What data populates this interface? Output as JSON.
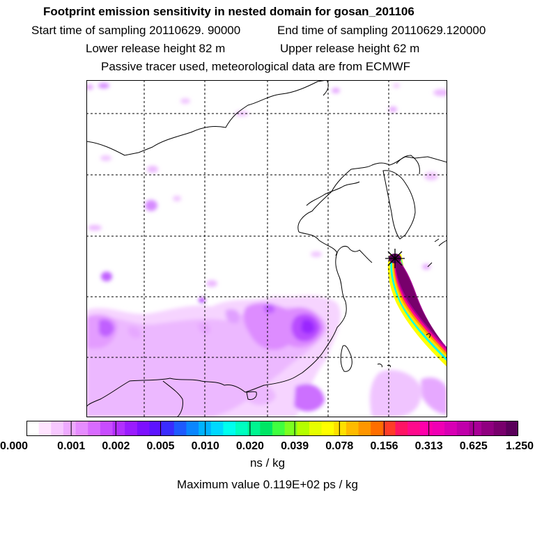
{
  "header": {
    "title": "Footprint emission sensitivity in nested domain for gosan_201106",
    "start_time": "Start time of sampling 20110629. 90000",
    "end_time": "End time of sampling 20110629.120000",
    "lower_height": "Lower release height   82 m",
    "upper_height": "Upper release height   62 m",
    "tracer_info": "Passive tracer used, meteorological data are from ECMWF"
  },
  "colorbar": {
    "colors": [
      "#ffffff",
      "#ffe4ff",
      "#f7c8ff",
      "#eeaaff",
      "#e68cff",
      "#d86bff",
      "#c84cff",
      "#b230ff",
      "#9a1cff",
      "#7d10ff",
      "#5c14ff",
      "#3a2cff",
      "#1e5aff",
      "#0a86ff",
      "#00b2ff",
      "#00d8ff",
      "#00ffee",
      "#00ffc0",
      "#00f590",
      "#00e664",
      "#40ff40",
      "#7cff20",
      "#b4ff00",
      "#e6ff00",
      "#ffff00",
      "#ffe000",
      "#ffbb00",
      "#ff9600",
      "#ff6e00",
      "#ff3c28",
      "#ff1464",
      "#ff0a8c",
      "#ff00aa",
      "#f000b4",
      "#d800b4",
      "#c000aa",
      "#a80096",
      "#900080",
      "#78006c",
      "#5a005a"
    ],
    "tick_labels": [
      "0.000",
      "0.001",
      "0.002",
      "0.005",
      "0.010",
      "0.020",
      "0.039",
      "0.078",
      "0.156",
      "0.313",
      "0.625",
      "1.250"
    ],
    "units": "ns / kg",
    "max_value": "Maximum value  0.119E+02 ps / kg"
  }
}
